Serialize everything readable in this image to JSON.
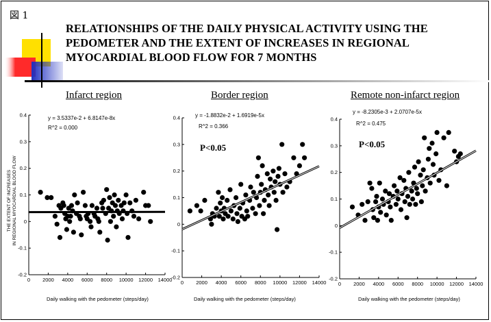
{
  "figure": {
    "label": "図 1",
    "title": "RELATIONSHIPS OF THE DAILY PHYSICAL ACTIVITY USING THE PEDOMETER AND THE EXTENT OF INCREASES IN REGIONAL MYOCARDIAL BLOOD FLOW FOR 7 MONTHS",
    "ylabel_line1": "THE EXTENT OF INCREASES",
    "ylabel_line2": "IN REGIONAL MYOCARDIAL BLOOD FLOW",
    "colors": {
      "yellow": "#ffe000",
      "red": "#ff2020",
      "blue": "#2030c0",
      "line": "#000000"
    }
  },
  "chart_data": [
    {
      "type": "scatter",
      "title": "Infarct region",
      "xlabel": "Daily walking with the pedometer (steps/day)",
      "ylabel": "THE EXTENT OF INCREASES IN REGIONAL MYOCARDIAL BLOOD FLOW",
      "equation": "y = 3.5337e-2 + 6.8147e-8x",
      "r2": "R^2 = 0.000",
      "pvalue": "",
      "xlim": [
        0,
        14000
      ],
      "ylim": [
        -0.2,
        0.4
      ],
      "xticks": [
        0,
        2000,
        4000,
        6000,
        8000,
        10000,
        12000,
        14000
      ],
      "yticks": [
        -0.2,
        -0.1,
        0,
        0.1,
        0.2,
        0.3,
        0.4
      ],
      "fit": {
        "intercept": 0.035337,
        "slope": 6.8147e-08
      },
      "points": [
        [
          1200,
          0.11
        ],
        [
          1900,
          0.09
        ],
        [
          2300,
          0.09
        ],
        [
          2700,
          0.02
        ],
        [
          2900,
          -0.01
        ],
        [
          3100,
          0.06
        ],
        [
          3200,
          -0.06
        ],
        [
          3300,
          0.05
        ],
        [
          3500,
          0.07
        ],
        [
          3600,
          0.06
        ],
        [
          3700,
          0.03
        ],
        [
          3800,
          0.01
        ],
        [
          3900,
          -0.03
        ],
        [
          4000,
          0.02
        ],
        [
          4100,
          0.05
        ],
        [
          4200,
          0.0
        ],
        [
          4300,
          0.02
        ],
        [
          4400,
          0.06
        ],
        [
          4500,
          0.04
        ],
        [
          4600,
          -0.04
        ],
        [
          4700,
          0.1
        ],
        [
          4900,
          0.03
        ],
        [
          5000,
          0.07
        ],
        [
          5200,
          0.02
        ],
        [
          5300,
          0.01
        ],
        [
          5400,
          -0.05
        ],
        [
          5600,
          0.11
        ],
        [
          5800,
          0.06
        ],
        [
          5900,
          0.02
        ],
        [
          6000,
          0.01
        ],
        [
          6100,
          0.03
        ],
        [
          6300,
          0.0
        ],
        [
          6400,
          -0.02
        ],
        [
          6500,
          0.06
        ],
        [
          6700,
          0.03
        ],
        [
          6800,
          0.02
        ],
        [
          7000,
          0.05
        ],
        [
          7100,
          0.01
        ],
        [
          7200,
          0.0
        ],
        [
          7300,
          -0.04
        ],
        [
          7500,
          0.07
        ],
        [
          7600,
          0.05
        ],
        [
          7700,
          0.08
        ],
        [
          7900,
          0.03
        ],
        [
          8000,
          0.12
        ],
        [
          8100,
          -0.07
        ],
        [
          8200,
          0.05
        ],
        [
          8300,
          0.09
        ],
        [
          8400,
          0.0
        ],
        [
          8500,
          0.04
        ],
        [
          8600,
          0.07
        ],
        [
          8700,
          0.02
        ],
        [
          8800,
          0.1
        ],
        [
          8900,
          0.06
        ],
        [
          9000,
          -0.02
        ],
        [
          9100,
          0.04
        ],
        [
          9200,
          0.08
        ],
        [
          9300,
          0.03
        ],
        [
          9500,
          0.06
        ],
        [
          9600,
          0.01
        ],
        [
          9700,
          0.04
        ],
        [
          9800,
          0.07
        ],
        [
          10000,
          0.1
        ],
        [
          10100,
          0.03
        ],
        [
          10200,
          -0.06
        ],
        [
          10400,
          0.07
        ],
        [
          10600,
          0.04
        ],
        [
          10800,
          0.02
        ],
        [
          11000,
          0.08
        ],
        [
          11300,
          0.01
        ],
        [
          11800,
          0.11
        ],
        [
          12000,
          0.06
        ],
        [
          12300,
          0.06
        ],
        [
          12500,
          0.0
        ]
      ]
    },
    {
      "type": "scatter",
      "title": "Border region",
      "xlabel": "Daily walking with the pedometer (steps/day)",
      "ylabel": "",
      "equation": "y = -1.8832e-2 + 1.6919e-5x",
      "r2": "R^2 = 0.366",
      "pvalue": "P<0.05",
      "xlim": [
        0,
        14000
      ],
      "ylim": [
        -0.2,
        0.4
      ],
      "xticks": [
        0,
        2000,
        4000,
        6000,
        8000,
        10000,
        12000,
        14000
      ],
      "yticks": [
        -0.2,
        -0.1,
        0,
        0.1,
        0.2,
        0.3,
        0.4
      ],
      "fit": {
        "intercept": -0.018832,
        "slope": 1.6919e-05
      },
      "points": [
        [
          800,
          0.05
        ],
        [
          1500,
          0.07
        ],
        [
          1900,
          0.05
        ],
        [
          2300,
          0.09
        ],
        [
          2900,
          0.02
        ],
        [
          3000,
          0.0
        ],
        [
          3100,
          0.04
        ],
        [
          3300,
          0.03
        ],
        [
          3500,
          0.06
        ],
        [
          3700,
          0.12
        ],
        [
          3800,
          0.03
        ],
        [
          3900,
          0.08
        ],
        [
          4000,
          0.05
        ],
        [
          4100,
          0.1
        ],
        [
          4200,
          0.02
        ],
        [
          4300,
          0.06
        ],
        [
          4400,
          0.04
        ],
        [
          4600,
          0.09
        ],
        [
          4700,
          0.03
        ],
        [
          4900,
          0.13
        ],
        [
          5000,
          0.05
        ],
        [
          5200,
          0.02
        ],
        [
          5300,
          0.07
        ],
        [
          5500,
          0.1
        ],
        [
          5600,
          0.04
        ],
        [
          5700,
          0.01
        ],
        [
          5900,
          0.06
        ],
        [
          6000,
          0.15
        ],
        [
          6100,
          0.03
        ],
        [
          6200,
          0.08
        ],
        [
          6400,
          0.02
        ],
        [
          6500,
          0.11
        ],
        [
          6600,
          0.05
        ],
        [
          6700,
          0.03
        ],
        [
          6900,
          0.09
        ],
        [
          7000,
          0.14
        ],
        [
          7200,
          0.06
        ],
        [
          7300,
          0.12
        ],
        [
          7500,
          0.04
        ],
        [
          7600,
          0.1
        ],
        [
          7700,
          0.18
        ],
        [
          7800,
          0.25
        ],
        [
          7900,
          0.07
        ],
        [
          8000,
          0.12
        ],
        [
          8100,
          0.15
        ],
        [
          8200,
          0.22
        ],
        [
          8300,
          0.04
        ],
        [
          8400,
          0.09
        ],
        [
          8500,
          0.13
        ],
        [
          8700,
          0.19
        ],
        [
          8800,
          0.11
        ],
        [
          8900,
          0.07
        ],
        [
          9000,
          0.17
        ],
        [
          9100,
          0.14
        ],
        [
          9300,
          0.2
        ],
        [
          9400,
          0.12
        ],
        [
          9500,
          0.16
        ],
        [
          9600,
          0.09
        ],
        [
          9700,
          -0.02
        ],
        [
          9800,
          0.18
        ],
        [
          9900,
          0.21
        ],
        [
          10000,
          0.15
        ],
        [
          10200,
          0.3
        ],
        [
          10300,
          0.12
        ],
        [
          10500,
          0.19
        ],
        [
          10700,
          0.14
        ],
        [
          11000,
          0.16
        ],
        [
          11400,
          0.25
        ],
        [
          11700,
          0.19
        ],
        [
          12000,
          0.22
        ],
        [
          12300,
          0.3
        ],
        [
          12500,
          0.25
        ]
      ]
    },
    {
      "type": "scatter",
      "title": "Remote non-infarct  region",
      "xlabel": "Daily walking with the pedometer (steps/day)",
      "ylabel": "",
      "equation": "y = -8.2305e-3 + 2.0707e-5x",
      "r2": "R^2 = 0.475",
      "pvalue": "P<0.05",
      "xlim": [
        0,
        14000
      ],
      "ylim": [
        -0.2,
        0.4
      ],
      "xticks": [
        0,
        2000,
        4000,
        6000,
        8000,
        10000,
        12000,
        14000
      ],
      "yticks": [
        -0.2,
        -0.1,
        0,
        0.1,
        0.2,
        0.3,
        0.4
      ],
      "fit": {
        "intercept": -0.0082305,
        "slope": 2.0707e-05
      },
      "points": [
        [
          1300,
          0.07
        ],
        [
          1900,
          0.04
        ],
        [
          2300,
          0.08
        ],
        [
          2600,
          0.02
        ],
        [
          2900,
          0.09
        ],
        [
          3100,
          0.16
        ],
        [
          3300,
          0.14
        ],
        [
          3400,
          0.06
        ],
        [
          3500,
          0.03
        ],
        [
          3700,
          0.09
        ],
        [
          3800,
          0.11
        ],
        [
          3900,
          0.02
        ],
        [
          4000,
          0.07
        ],
        [
          4100,
          0.16
        ],
        [
          4200,
          0.05
        ],
        [
          4400,
          0.1
        ],
        [
          4500,
          0.08
        ],
        [
          4700,
          0.13
        ],
        [
          4800,
          0.04
        ],
        [
          5000,
          0.09
        ],
        [
          5100,
          0.12
        ],
        [
          5200,
          0.07
        ],
        [
          5300,
          0.02
        ],
        [
          5500,
          0.11
        ],
        [
          5600,
          0.15
        ],
        [
          5800,
          0.08
        ],
        [
          5900,
          0.13
        ],
        [
          6000,
          0.1
        ],
        [
          6200,
          0.18
        ],
        [
          6300,
          0.06
        ],
        [
          6400,
          0.12
        ],
        [
          6600,
          0.17
        ],
        [
          6700,
          0.09
        ],
        [
          6800,
          0.14
        ],
        [
          6900,
          0.03
        ],
        [
          7000,
          0.11
        ],
        [
          7100,
          0.2
        ],
        [
          7200,
          0.08
        ],
        [
          7400,
          0.13
        ],
        [
          7500,
          0.1
        ],
        [
          7600,
          0.16
        ],
        [
          7700,
          0.22
        ],
        [
          7800,
          0.08
        ],
        [
          7900,
          0.14
        ],
        [
          8000,
          0.12
        ],
        [
          8100,
          0.24
        ],
        [
          8300,
          0.19
        ],
        [
          8400,
          0.09
        ],
        [
          8500,
          0.15
        ],
        [
          8600,
          0.21
        ],
        [
          8700,
          0.33
        ],
        [
          8800,
          0.13
        ],
        [
          9000,
          0.18
        ],
        [
          9100,
          0.25
        ],
        [
          9200,
          0.29
        ],
        [
          9300,
          0.16
        ],
        [
          9500,
          0.31
        ],
        [
          9600,
          0.23
        ],
        [
          9700,
          0.19
        ],
        [
          9900,
          0.27
        ],
        [
          10000,
          0.35
        ],
        [
          10200,
          0.17
        ],
        [
          10400,
          0.21
        ],
        [
          10700,
          0.33
        ],
        [
          11000,
          0.15
        ],
        [
          11200,
          0.35
        ],
        [
          11800,
          0.28
        ],
        [
          12000,
          0.24
        ],
        [
          12200,
          0.26
        ],
        [
          12400,
          0.27
        ]
      ]
    }
  ]
}
